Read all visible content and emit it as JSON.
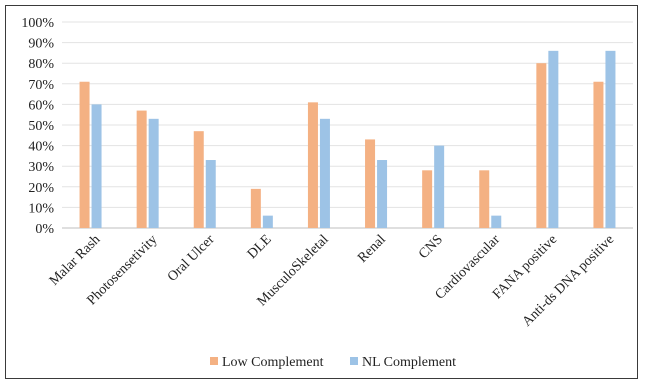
{
  "chart_data": {
    "type": "bar",
    "title": "",
    "xlabel": "",
    "ylabel": "",
    "ylim": [
      0,
      100
    ],
    "y_ticks": [
      "0%",
      "10%",
      "20%",
      "30%",
      "40%",
      "50%",
      "60%",
      "70%",
      "80%",
      "90%",
      "100%"
    ],
    "grid": true,
    "legend_position": "bottom",
    "categories": [
      "Malar Rash",
      "Photosensetivity",
      "Oral Ulcer",
      "DLE",
      "MusculoSkeletal",
      "Renal",
      "CNS",
      "Cardiovascular",
      "FANA positive",
      "Anti-ds DNA positive"
    ],
    "series": [
      {
        "name": "Low Complement",
        "color": "#F4B183",
        "values": [
          71,
          57,
          47,
          19,
          61,
          43,
          28,
          28,
          80,
          71
        ]
      },
      {
        "name": "NL Complement",
        "color": "#9DC3E6",
        "values": [
          60,
          53,
          33,
          6,
          53,
          33,
          40,
          6,
          86,
          86
        ]
      }
    ]
  }
}
